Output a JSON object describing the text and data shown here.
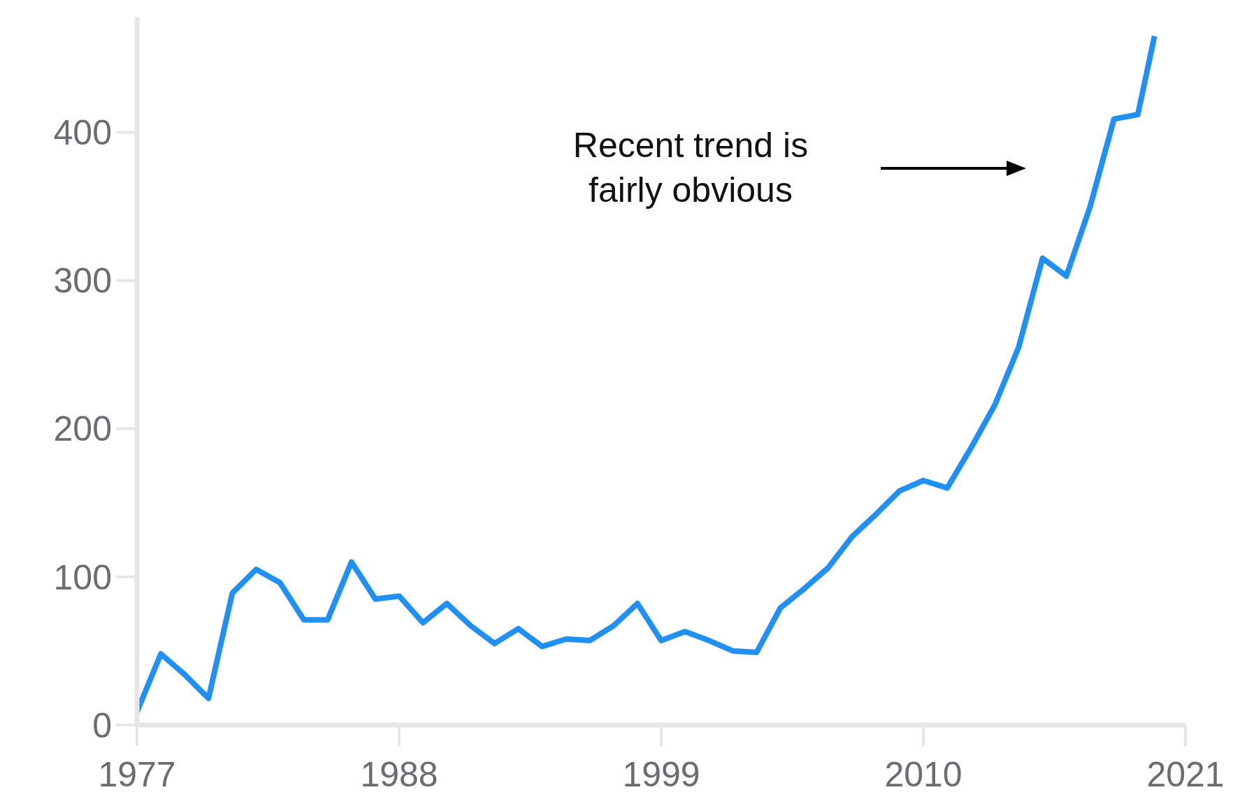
{
  "chart_data": {
    "type": "line",
    "x": [
      1977,
      1978,
      1979,
      1980,
      1981,
      1982,
      1983,
      1984,
      1985,
      1986,
      1987,
      1988,
      1989,
      1990,
      1991,
      1992,
      1993,
      1994,
      1995,
      1996,
      1997,
      1998,
      1999,
      2000,
      2001,
      2002,
      2003,
      2004,
      2005,
      2006,
      2007,
      2008,
      2009,
      2010,
      2011,
      2012,
      2013,
      2014,
      2015,
      2016,
      2017,
      2018,
      2019,
      2019.7
    ],
    "series": [
      {
        "color": "#2190f5",
        "values": [
          9,
          48,
          34,
          18,
          89,
          105,
          96,
          71,
          71,
          110,
          85,
          87,
          69,
          82,
          67,
          55,
          65,
          53,
          58,
          57,
          67,
          82,
          57,
          63,
          57,
          50,
          49,
          79,
          92,
          106,
          127,
          142,
          158,
          165,
          160,
          187,
          216,
          255,
          315,
          303,
          350,
          409,
          412,
          465
        ]
      }
    ],
    "xlim": [
      1977,
      2021
    ],
    "xticks": [
      1977,
      1988,
      1999,
      2010,
      2021
    ],
    "ylim": [
      0,
      478
    ],
    "yticks": [
      0,
      100,
      200,
      300,
      400
    ],
    "grid": false,
    "marker": "none",
    "line_style": "solid",
    "annotations": [
      "Recent trend is\nfairly obvious"
    ]
  }
}
